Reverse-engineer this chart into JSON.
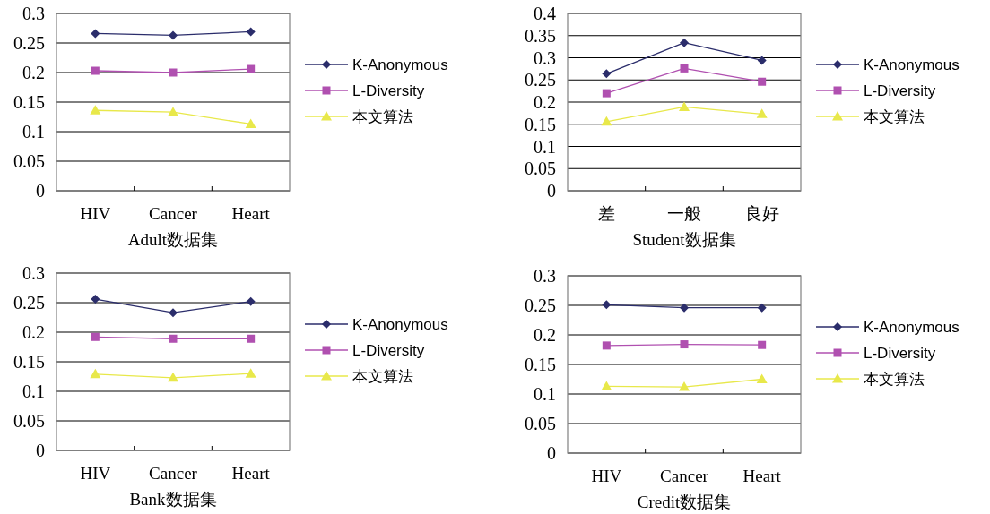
{
  "chart_data": [
    {
      "type": "line",
      "xlabel": "Adult数据集",
      "categories": [
        "HIV",
        "Cancer",
        "Heart"
      ],
      "ylim": [
        0,
        0.3
      ],
      "yticks": [
        0,
        0.05,
        0.1,
        0.15,
        0.2,
        0.25,
        0.3
      ],
      "grid": "y",
      "legend": "right",
      "series": [
        {
          "name": "K-Anonymous",
          "color": "#2b2d6b",
          "marker": "diamond",
          "values": [
            0.266,
            0.263,
            0.269
          ]
        },
        {
          "name": "L-Diversity",
          "color": "#b050b0",
          "marker": "square",
          "values": [
            0.203,
            0.2,
            0.206
          ]
        },
        {
          "name": "本文算法",
          "color": "#e8e84a",
          "marker": "triangle",
          "values": [
            0.136,
            0.133,
            0.113
          ]
        }
      ]
    },
    {
      "type": "line",
      "xlabel": "Student数据集",
      "categories": [
        "差",
        "一般",
        "良好"
      ],
      "ylim": [
        0,
        0.4
      ],
      "yticks": [
        0,
        0.05,
        0.1,
        0.15,
        0.2,
        0.25,
        0.3,
        0.35,
        0.4
      ],
      "grid": "y",
      "legend": "right",
      "series": [
        {
          "name": "K-Anonymous",
          "color": "#2b2d6b",
          "marker": "diamond",
          "values": [
            0.264,
            0.334,
            0.294
          ]
        },
        {
          "name": "L-Diversity",
          "color": "#b050b0",
          "marker": "square",
          "values": [
            0.22,
            0.276,
            0.246
          ]
        },
        {
          "name": "本文算法",
          "color": "#e8e84a",
          "marker": "triangle",
          "values": [
            0.156,
            0.189,
            0.173
          ]
        }
      ]
    },
    {
      "type": "line",
      "xlabel": "Bank数据集",
      "categories": [
        "HIV",
        "Cancer",
        "Heart"
      ],
      "ylim": [
        0,
        0.3
      ],
      "yticks": [
        0,
        0.05,
        0.1,
        0.15,
        0.2,
        0.25,
        0.3
      ],
      "grid": "y",
      "legend": "right",
      "series": [
        {
          "name": "K-Anonymous",
          "color": "#2b2d6b",
          "marker": "diamond",
          "values": [
            0.256,
            0.233,
            0.252
          ]
        },
        {
          "name": "L-Diversity",
          "color": "#b050b0",
          "marker": "square",
          "values": [
            0.192,
            0.189,
            0.189
          ]
        },
        {
          "name": "本文算法",
          "color": "#e8e84a",
          "marker": "triangle",
          "values": [
            0.129,
            0.123,
            0.13
          ]
        }
      ]
    },
    {
      "type": "line",
      "xlabel": "Credit数据集",
      "categories": [
        "HIV",
        "Cancer",
        "Heart"
      ],
      "ylim": [
        0,
        0.3
      ],
      "yticks": [
        0,
        0.05,
        0.1,
        0.15,
        0.2,
        0.25,
        0.3
      ],
      "grid": "y",
      "legend": "right",
      "series": [
        {
          "name": "K-Anonymous",
          "color": "#2b2d6b",
          "marker": "diamond",
          "values": [
            0.251,
            0.246,
            0.246
          ]
        },
        {
          "name": "L-Diversity",
          "color": "#b050b0",
          "marker": "square",
          "values": [
            0.182,
            0.184,
            0.183
          ]
        },
        {
          "name": "本文算法",
          "color": "#e8e84a",
          "marker": "triangle",
          "values": [
            0.113,
            0.112,
            0.125
          ]
        }
      ]
    }
  ]
}
